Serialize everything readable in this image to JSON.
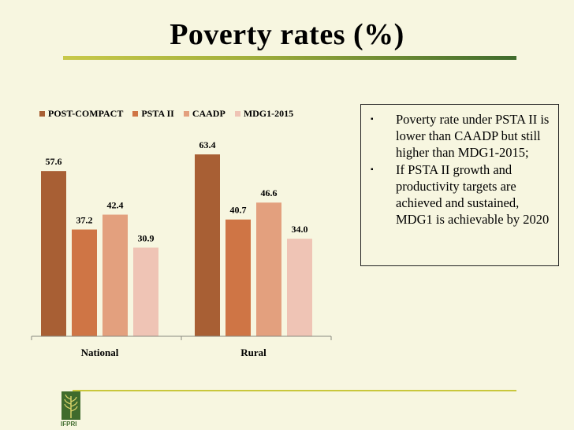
{
  "slide": {
    "title": "Poverty rates (%)"
  },
  "chart_data": {
    "type": "bar",
    "categories": [
      "National",
      "Rural"
    ],
    "series": [
      {
        "name": "POST-COMPACT",
        "color": "#a85f34",
        "values": [
          57.6,
          63.4
        ]
      },
      {
        "name": "PSTA II",
        "color": "#cf7545",
        "values": [
          37.2,
          40.7
        ]
      },
      {
        "name": "CAADP",
        "color": "#e3a07e",
        "values": [
          42.4,
          46.6
        ]
      },
      {
        "name": "MDG1-2015",
        "color": "#efc4b5",
        "values": [
          30.9,
          34.0
        ]
      }
    ],
    "data_labels": [
      [
        "57.6",
        "63.4"
      ],
      [
        "37.2",
        "40.7"
      ],
      [
        "42.4",
        "46.6"
      ],
      [
        "30.9",
        "34.0"
      ]
    ],
    "ylim": [
      0,
      70
    ],
    "legend_position": "top",
    "grid": false
  },
  "notes": {
    "bullets": [
      {
        "mark": "▪",
        "text": "Poverty rate under PSTA II is lower than CAADP but still higher than MDG1-2015;"
      },
      {
        "mark": "▪",
        "text": "If PSTA II growth and productivity targets are achieved and sustained, MDG1 is achievable by 2020"
      }
    ]
  },
  "footer": {
    "logo_text": "IFPRI"
  }
}
